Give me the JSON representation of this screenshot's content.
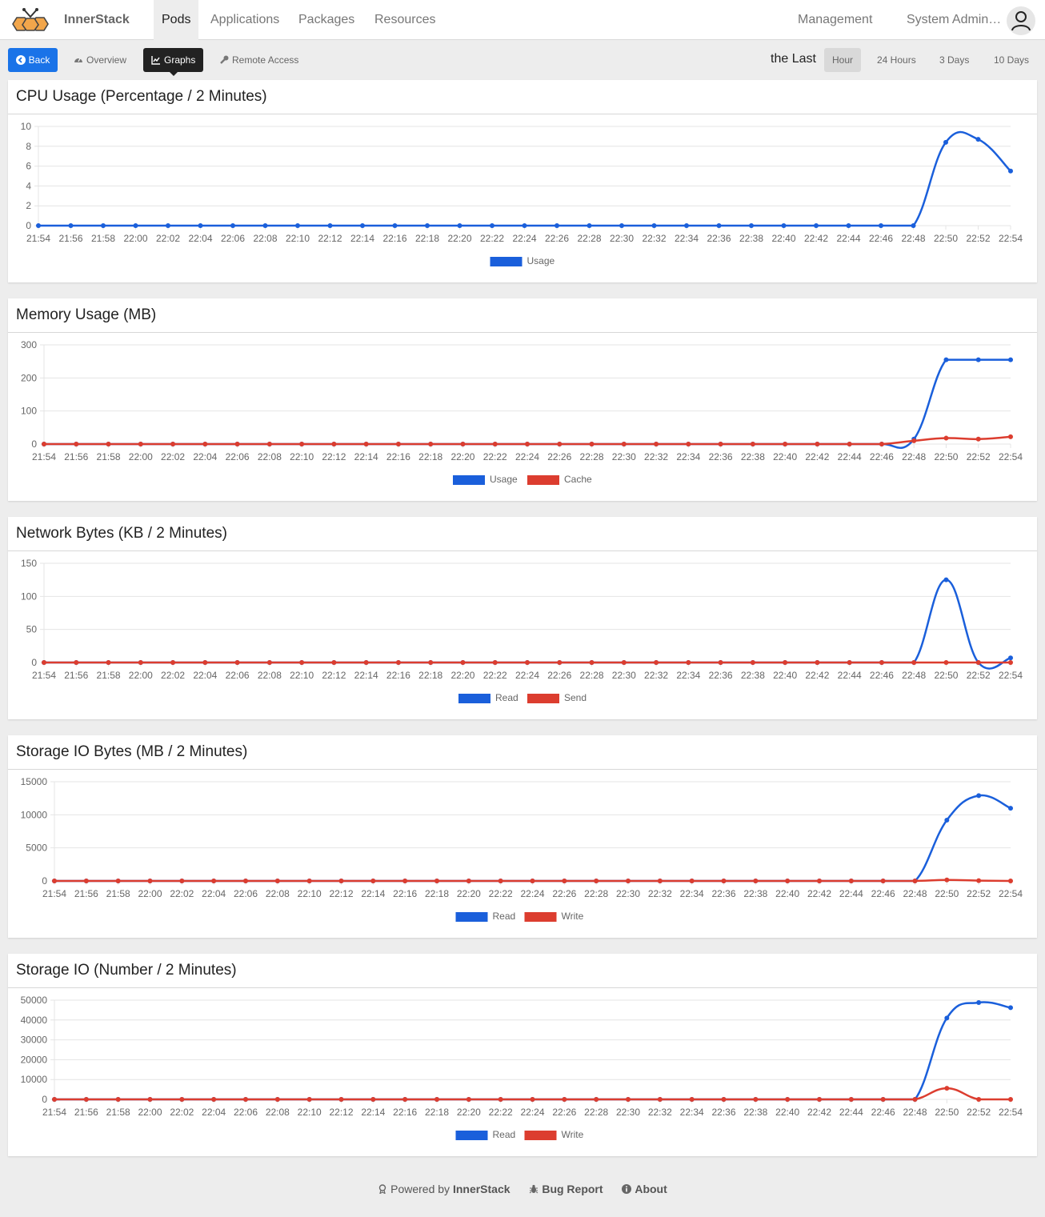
{
  "app": {
    "brand": "InnerStack"
  },
  "nav": {
    "items": [
      {
        "label": "Pods",
        "active": true
      },
      {
        "label": "Applications",
        "active": false
      },
      {
        "label": "Packages",
        "active": false
      },
      {
        "label": "Resources",
        "active": false
      }
    ],
    "management": "Management",
    "user": "System Admin…"
  },
  "toolbar": {
    "back": "Back",
    "tabs": [
      {
        "label": "Overview",
        "icon": "dashboard-icon"
      },
      {
        "label": "Graphs",
        "icon": "chart-icon",
        "active": true
      },
      {
        "label": "Remote Access",
        "icon": "wrench-icon"
      }
    ],
    "range_label": "the Last",
    "ranges": [
      {
        "label": "Hour",
        "active": true
      },
      {
        "label": "24 Hours"
      },
      {
        "label": "3 Days"
      },
      {
        "label": "10 Days"
      }
    ]
  },
  "colors": {
    "blue": "#1a5fdb",
    "red": "#dc3d2f",
    "accent": "#1a73e8"
  },
  "chart_data": [
    {
      "type": "line",
      "title": "CPU Usage (Percentage / 2 Minutes)",
      "x": [
        "21:54",
        "21:56",
        "21:58",
        "22:00",
        "22:02",
        "22:04",
        "22:06",
        "22:08",
        "22:10",
        "22:12",
        "22:14",
        "22:16",
        "22:18",
        "22:20",
        "22:22",
        "22:24",
        "22:26",
        "22:28",
        "22:30",
        "22:32",
        "22:34",
        "22:36",
        "22:38",
        "22:40",
        "22:42",
        "22:44",
        "22:46",
        "22:48",
        "22:50",
        "22:52",
        "22:54"
      ],
      "yticks": [
        0,
        2,
        4,
        6,
        8,
        10
      ],
      "ylim": [
        0,
        10
      ],
      "series": [
        {
          "name": "Usage",
          "color": "blue",
          "values": [
            0,
            0,
            0,
            0,
            0,
            0,
            0,
            0,
            0,
            0,
            0,
            0,
            0,
            0,
            0,
            0,
            0,
            0,
            0,
            0,
            0,
            0,
            0,
            0,
            0,
            0,
            0,
            0,
            8.4,
            8.7,
            5.5
          ]
        }
      ]
    },
    {
      "type": "line",
      "title": "Memory Usage (MB)",
      "x": [
        "21:54",
        "21:56",
        "21:58",
        "22:00",
        "22:02",
        "22:04",
        "22:06",
        "22:08",
        "22:10",
        "22:12",
        "22:14",
        "22:16",
        "22:18",
        "22:20",
        "22:22",
        "22:24",
        "22:26",
        "22:28",
        "22:30",
        "22:32",
        "22:34",
        "22:36",
        "22:38",
        "22:40",
        "22:42",
        "22:44",
        "22:46",
        "22:48",
        "22:50",
        "22:52",
        "22:54"
      ],
      "yticks": [
        0,
        100,
        200,
        300
      ],
      "ylim": [
        0,
        300
      ],
      "series": [
        {
          "name": "Usage",
          "color": "blue",
          "values": [
            0,
            0,
            0,
            0,
            0,
            0,
            0,
            0,
            0,
            0,
            0,
            0,
            0,
            0,
            0,
            0,
            0,
            0,
            0,
            0,
            0,
            0,
            0,
            0,
            0,
            0,
            0,
            15,
            255,
            255,
            255
          ]
        },
        {
          "name": "Cache",
          "color": "red",
          "values": [
            0,
            0,
            0,
            0,
            0,
            0,
            0,
            0,
            0,
            0,
            0,
            0,
            0,
            0,
            0,
            0,
            0,
            0,
            0,
            0,
            0,
            0,
            0,
            0,
            0,
            0,
            0,
            10,
            18,
            15,
            22
          ]
        }
      ]
    },
    {
      "type": "line",
      "title": "Network Bytes (KB / 2 Minutes)",
      "x": [
        "21:54",
        "21:56",
        "21:58",
        "22:00",
        "22:02",
        "22:04",
        "22:06",
        "22:08",
        "22:10",
        "22:12",
        "22:14",
        "22:16",
        "22:18",
        "22:20",
        "22:22",
        "22:24",
        "22:26",
        "22:28",
        "22:30",
        "22:32",
        "22:34",
        "22:36",
        "22:38",
        "22:40",
        "22:42",
        "22:44",
        "22:46",
        "22:48",
        "22:50",
        "22:52",
        "22:54"
      ],
      "yticks": [
        0,
        50,
        100,
        150
      ],
      "ylim": [
        0,
        150
      ],
      "series": [
        {
          "name": "Read",
          "color": "blue",
          "values": [
            0,
            0,
            0,
            0,
            0,
            0,
            0,
            0,
            0,
            0,
            0,
            0,
            0,
            0,
            0,
            0,
            0,
            0,
            0,
            0,
            0,
            0,
            0,
            0,
            0,
            0,
            0,
            0,
            125,
            0,
            7
          ]
        },
        {
          "name": "Send",
          "color": "red",
          "values": [
            0,
            0,
            0,
            0,
            0,
            0,
            0,
            0,
            0,
            0,
            0,
            0,
            0,
            0,
            0,
            0,
            0,
            0,
            0,
            0,
            0,
            0,
            0,
            0,
            0,
            0,
            0,
            0,
            0,
            0,
            0
          ]
        }
      ]
    },
    {
      "type": "line",
      "title": "Storage IO Bytes (MB / 2 Minutes)",
      "x": [
        "21:54",
        "21:56",
        "21:58",
        "22:00",
        "22:02",
        "22:04",
        "22:06",
        "22:08",
        "22:10",
        "22:12",
        "22:14",
        "22:16",
        "22:18",
        "22:20",
        "22:22",
        "22:24",
        "22:26",
        "22:28",
        "22:30",
        "22:32",
        "22:34",
        "22:36",
        "22:38",
        "22:40",
        "22:42",
        "22:44",
        "22:46",
        "22:48",
        "22:50",
        "22:52",
        "22:54"
      ],
      "yticks": [
        0,
        5000,
        10000,
        15000
      ],
      "ylim": [
        0,
        15000
      ],
      "series": [
        {
          "name": "Read",
          "color": "blue",
          "values": [
            0,
            0,
            0,
            0,
            0,
            0,
            0,
            0,
            0,
            0,
            0,
            0,
            0,
            0,
            0,
            0,
            0,
            0,
            0,
            0,
            0,
            0,
            0,
            0,
            0,
            0,
            0,
            0,
            9200,
            12900,
            11000
          ]
        },
        {
          "name": "Write",
          "color": "red",
          "values": [
            0,
            0,
            0,
            0,
            0,
            0,
            0,
            0,
            0,
            0,
            0,
            0,
            0,
            0,
            0,
            0,
            0,
            0,
            0,
            0,
            0,
            0,
            0,
            0,
            0,
            0,
            0,
            0,
            150,
            50,
            0
          ]
        }
      ]
    },
    {
      "type": "line",
      "title": "Storage IO (Number / 2 Minutes)",
      "x": [
        "21:54",
        "21:56",
        "21:58",
        "22:00",
        "22:02",
        "22:04",
        "22:06",
        "22:08",
        "22:10",
        "22:12",
        "22:14",
        "22:16",
        "22:18",
        "22:20",
        "22:22",
        "22:24",
        "22:26",
        "22:28",
        "22:30",
        "22:32",
        "22:34",
        "22:36",
        "22:38",
        "22:40",
        "22:42",
        "22:44",
        "22:46",
        "22:48",
        "22:50",
        "22:52",
        "22:54"
      ],
      "yticks": [
        0,
        10000,
        20000,
        30000,
        40000,
        50000
      ],
      "ylim": [
        0,
        50000
      ],
      "series": [
        {
          "name": "Read",
          "color": "blue",
          "values": [
            0,
            0,
            0,
            0,
            0,
            0,
            0,
            0,
            0,
            0,
            0,
            0,
            0,
            0,
            0,
            0,
            0,
            0,
            0,
            0,
            0,
            0,
            0,
            0,
            0,
            0,
            0,
            0,
            41000,
            48800,
            46200
          ]
        },
        {
          "name": "Write",
          "color": "red",
          "values": [
            0,
            0,
            0,
            0,
            0,
            0,
            0,
            0,
            0,
            0,
            0,
            0,
            0,
            0,
            0,
            0,
            0,
            0,
            0,
            0,
            0,
            0,
            0,
            0,
            0,
            0,
            0,
            0,
            5600,
            0,
            0
          ]
        }
      ]
    }
  ],
  "footer": {
    "powered_prefix": "Powered by",
    "powered_brand": "InnerStack",
    "bug_report": "Bug Report",
    "about": "About"
  }
}
